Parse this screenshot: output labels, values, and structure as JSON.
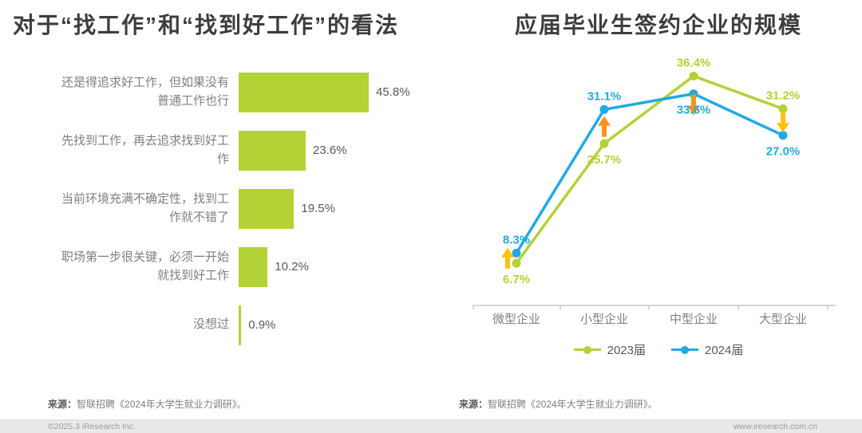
{
  "chart_data": [
    {
      "type": "bar",
      "orientation": "horizontal",
      "title": "对于“找工作”和“找到好工作”的看法",
      "categories": [
        "还是得追求好工作，但如果没有普通工作也行",
        "先找到工作，再去追求找到好工作",
        "当前环境充满不确定性，找到工作就不错了",
        "职场第一步很关键，必须一开始就找到好工作",
        "没想过"
      ],
      "values": [
        45.8,
        23.6,
        19.5,
        10.2,
        0.9
      ],
      "value_labels": [
        "45.8%",
        "23.6%",
        "19.5%",
        "10.2%",
        "0.9%"
      ],
      "xlim": [
        0,
        50
      ],
      "bar_color": "#b2d235",
      "grid": false
    },
    {
      "type": "line",
      "title": "应届毕业生签约企业的规模",
      "categories": [
        "微型企业",
        "小型企业",
        "中型企业",
        "大型企业"
      ],
      "series": [
        {
          "name": "2023届",
          "color": "#b2d235",
          "values": [
            6.7,
            25.7,
            36.4,
            31.2
          ],
          "value_labels": [
            "6.7%",
            "25.7%",
            "36.4%",
            "31.2%"
          ]
        },
        {
          "name": "2024届",
          "color": "#22aae2",
          "values": [
            8.3,
            31.1,
            33.6,
            27.0
          ],
          "value_labels": [
            "8.3%",
            "31.1%",
            "33.6%",
            "27.0%"
          ]
        }
      ],
      "ylim": [
        0,
        41
      ],
      "legend_position": "bottom",
      "grid": false,
      "trend_arrows": [
        {
          "direction": "up",
          "color": "#ffc20e",
          "dx": -11,
          "dy": 0
        },
        {
          "direction": "up",
          "color": "#f7941d",
          "dx": 0,
          "dy": 0
        },
        {
          "direction": "down",
          "color": "#f7941d",
          "dx": 0,
          "dy": 25
        },
        {
          "direction": "down",
          "color": "#ffc20e",
          "dx": 0,
          "dy": 0
        }
      ]
    }
  ],
  "sources": {
    "label": "来源：",
    "left_text": "智联招聘《2024年大学生就业力调研》。",
    "right_text": "智联招聘《2024年大学生就业力调研》。"
  },
  "footer": {
    "copyright": "©2025.3 iResearch Inc.",
    "website": "www.iresearch.com.cn"
  }
}
